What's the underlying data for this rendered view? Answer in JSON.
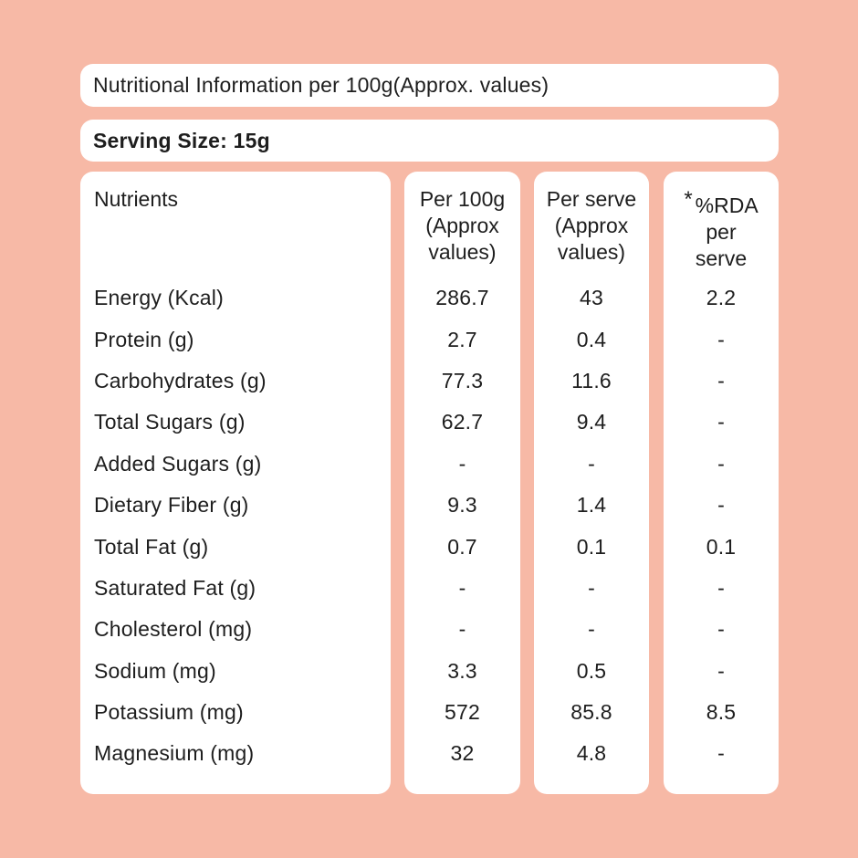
{
  "page": {
    "background_color": "#F7B9A6",
    "card_color": "#FFFFFF",
    "text_color": "#1E1E1E"
  },
  "header": {
    "title": "Nutritional Information per 100g(Approx. values)",
    "serving_size": "Serving Size: 15g"
  },
  "table": {
    "type": "table",
    "columns": {
      "nutrients": {
        "label": "Nutrients"
      },
      "per_100g": {
        "line1": "Per 100g",
        "line2": "(Approx",
        "line3": "values)"
      },
      "per_serve": {
        "line1": "Per serve",
        "line2": "(Approx",
        "line3": "values)"
      },
      "rda": {
        "asterisk": "*",
        "line1": "%RDA",
        "line2": "per",
        "line3": "serve"
      }
    },
    "rows": [
      {
        "name": "Energy (Kcal)",
        "per100": "286.7",
        "serve": "43",
        "rda": "2.2"
      },
      {
        "name": "Protein (g)",
        "per100": "2.7",
        "serve": "0.4",
        "rda": "-"
      },
      {
        "name": "Carbohydrates (g)",
        "per100": "77.3",
        "serve": "11.6",
        "rda": "-"
      },
      {
        "name": "Total Sugars (g)",
        "per100": "62.7",
        "serve": "9.4",
        "rda": "-"
      },
      {
        "name": "Added Sugars (g)",
        "per100": "-",
        "serve": "-",
        "rda": "-"
      },
      {
        "name": "Dietary Fiber (g)",
        "per100": "9.3",
        "serve": "1.4",
        "rda": "-"
      },
      {
        "name": "Total Fat (g)",
        "per100": "0.7",
        "serve": "0.1",
        "rda": "0.1"
      },
      {
        "name": "Saturated Fat (g)",
        "per100": "-",
        "serve": "-",
        "rda": "-"
      },
      {
        "name": "Cholesterol (mg)",
        "per100": "-",
        "serve": "-",
        "rda": "-"
      },
      {
        "name": "Sodium (mg)",
        "per100": "3.3",
        "serve": "0.5",
        "rda": "-"
      },
      {
        "name": "Potassium (mg)",
        "per100": "572",
        "serve": "85.8",
        "rda": "8.5"
      },
      {
        "name": "Magnesium (mg)",
        "per100": "32",
        "serve": "4.8",
        "rda": "-"
      }
    ]
  }
}
